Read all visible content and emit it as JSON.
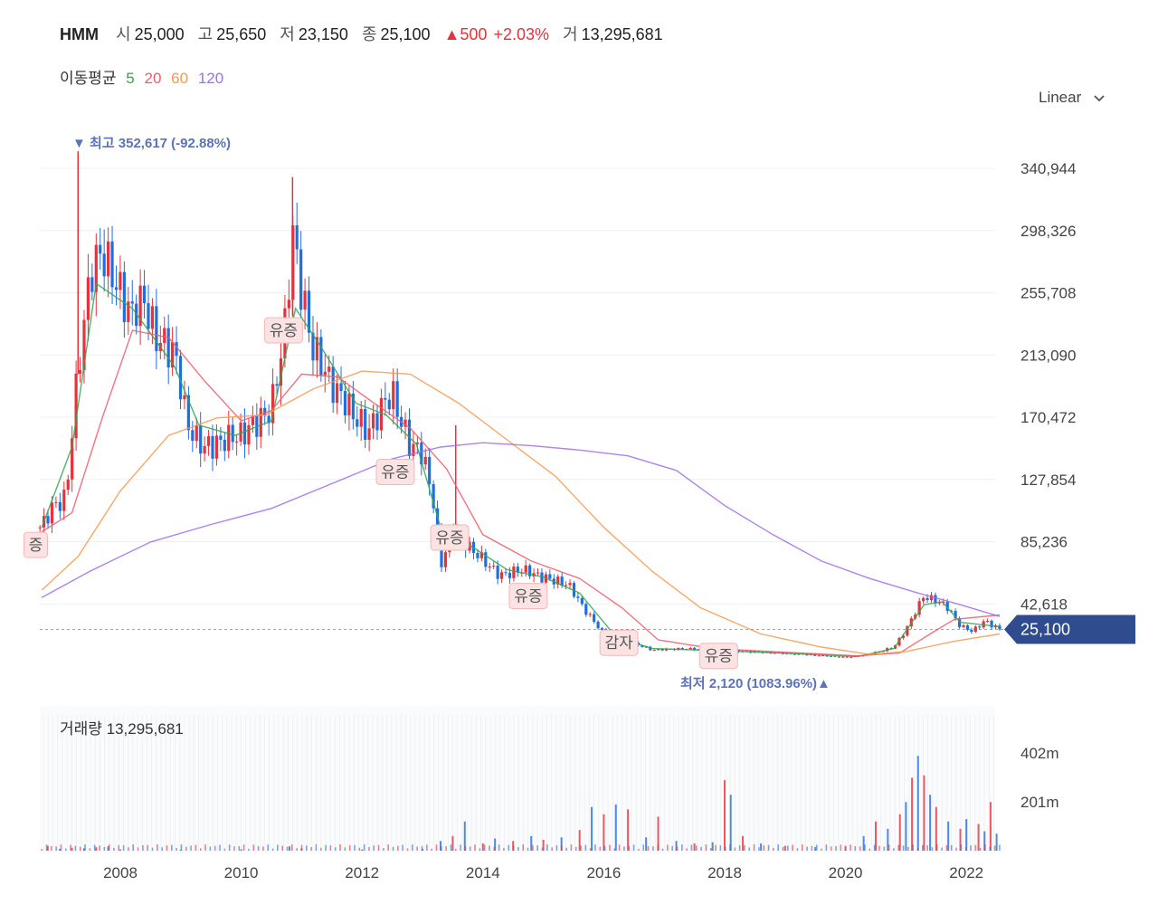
{
  "header": {
    "symbol": "HMM",
    "open_label": "시",
    "open": "25,000",
    "high_label": "고",
    "high": "25,650",
    "low_label": "저",
    "low": "23,150",
    "close_label": "종",
    "close": "25,100",
    "change": "▲500",
    "change_pct": "+2.03%",
    "volume_label": "거",
    "volume": "13,295,681"
  },
  "moving_avg": {
    "label": "이동평균",
    "periods": [
      {
        "label": "5",
        "color": "#2fa84f"
      },
      {
        "label": "20",
        "color": "#f05b6a"
      },
      {
        "label": "60",
        "color": "#f7994e"
      },
      {
        "label": "120",
        "color": "#a06cf0"
      }
    ]
  },
  "scale_selector": {
    "label": "Linear",
    "icon": "chevron-down-icon"
  },
  "annotations": {
    "max_label": "▼ 최고 352,617 (-92.88%)",
    "min_label": "최저 2,120 (1083.96%)▲"
  },
  "volume_panel": {
    "label": "거래량 13,295,681"
  },
  "colors": {
    "up": "#e8313b",
    "down": "#1f6fe0",
    "badge_bg": "#2f4d8e",
    "corporate_bg": "#fbe3e3"
  },
  "chart_data": [
    {
      "type": "candlestick",
      "price_ticks": [
        340944,
        298326,
        255708,
        213090,
        170472,
        127854,
        85236,
        42618
      ],
      "price_tick_labels": [
        "340,944",
        "298,326",
        "255,708",
        "213,090",
        "170,472",
        "127,854",
        "85,236",
        "42,618"
      ],
      "x_tick_labels": [
        "2008",
        "2010",
        "2012",
        "2014",
        "2016",
        "2018",
        "2020",
        "2022"
      ],
      "current_price": 25100,
      "current_price_label": "25,100",
      "max_price": 352617,
      "min_price": 2120,
      "corporate_actions": [
        {
          "year": 2006.6,
          "label": "증",
          "price": 83000
        },
        {
          "year": 2010.7,
          "label": "유증",
          "price": 230000
        },
        {
          "year": 2012.55,
          "label": "유증",
          "price": 133000
        },
        {
          "year": 2013.45,
          "label": "유증",
          "price": 88000
        },
        {
          "year": 2014.75,
          "label": "유증",
          "price": 48000
        },
        {
          "year": 2016.25,
          "label": "감자",
          "price": 16000
        },
        {
          "year": 2017.9,
          "label": "유증",
          "price": 7000
        }
      ],
      "price_path": [
        [
          2006.7,
          95000
        ],
        [
          2006.9,
          110000
        ],
        [
          2007.1,
          115000
        ],
        [
          2007.3,
          205000
        ],
        [
          2007.5,
          265000
        ],
        [
          2007.7,
          285000
        ],
        [
          2007.9,
          265000
        ],
        [
          2008.2,
          240000
        ],
        [
          2008.4,
          250000
        ],
        [
          2008.6,
          225000
        ],
        [
          2008.9,
          215000
        ],
        [
          2009.1,
          165000
        ],
        [
          2009.4,
          150000
        ],
        [
          2009.8,
          155000
        ],
        [
          2010.2,
          165000
        ],
        [
          2010.5,
          175000
        ],
        [
          2010.7,
          225000
        ],
        [
          2010.85,
          298000
        ],
        [
          2011.0,
          255000
        ],
        [
          2011.2,
          215000
        ],
        [
          2011.5,
          195000
        ],
        [
          2011.8,
          175000
        ],
        [
          2012.1,
          160000
        ],
        [
          2012.3,
          178000
        ],
        [
          2012.5,
          185000
        ],
        [
          2012.8,
          150000
        ],
        [
          2013.0,
          148000
        ],
        [
          2013.2,
          108000
        ],
        [
          2013.3,
          68000
        ],
        [
          2013.5,
          95000
        ],
        [
          2013.7,
          85000
        ],
        [
          2014.0,
          72000
        ],
        [
          2014.3,
          62000
        ],
        [
          2014.6,
          66000
        ],
        [
          2015.0,
          61000
        ],
        [
          2015.4,
          56000
        ],
        [
          2015.7,
          38000
        ],
        [
          2016.0,
          22000
        ],
        [
          2016.4,
          17000
        ],
        [
          2016.8,
          11000
        ],
        [
          2017.3,
          12000
        ],
        [
          2018.0,
          10500
        ],
        [
          2018.6,
          9500
        ],
        [
          2019.3,
          8000
        ],
        [
          2020.0,
          6000
        ],
        [
          2020.4,
          8000
        ],
        [
          2020.8,
          13000
        ],
        [
          2021.0,
          25000
        ],
        [
          2021.3,
          48000
        ],
        [
          2021.5,
          45000
        ],
        [
          2021.7,
          40000
        ],
        [
          2021.9,
          27000
        ],
        [
          2022.1,
          24000
        ],
        [
          2022.3,
          31000
        ],
        [
          2022.55,
          25100
        ]
      ],
      "moving_averages": [
        {
          "period": "5",
          "points": [
            [
              2006.7,
              95000
            ],
            [
              2007.2,
              150000
            ],
            [
              2007.6,
              262000
            ],
            [
              2008.2,
              245000
            ],
            [
              2008.9,
              205000
            ],
            [
              2009.3,
              165000
            ],
            [
              2009.9,
              158000
            ],
            [
              2010.5,
              168000
            ],
            [
              2010.9,
              245000
            ],
            [
              2011.3,
              220000
            ],
            [
              2011.9,
              180000
            ],
            [
              2012.4,
              172000
            ],
            [
              2012.9,
              152000
            ],
            [
              2013.3,
              95000
            ],
            [
              2013.7,
              85000
            ],
            [
              2014.4,
              66000
            ],
            [
              2015.0,
              61000
            ],
            [
              2015.6,
              50000
            ],
            [
              2016.2,
              20000
            ],
            [
              2016.8,
              12000
            ],
            [
              2018.0,
              10500
            ],
            [
              2019.5,
              8000
            ],
            [
              2020.2,
              6500
            ],
            [
              2020.8,
              12000
            ],
            [
              2021.3,
              42000
            ],
            [
              2021.6,
              44000
            ],
            [
              2021.9,
              30000
            ],
            [
              2022.55,
              27000
            ]
          ]
        },
        {
          "period": "20",
          "points": [
            [
              2006.7,
              92000
            ],
            [
              2007.2,
              105000
            ],
            [
              2007.7,
              170000
            ],
            [
              2008.2,
              230000
            ],
            [
              2008.8,
              225000
            ],
            [
              2009.4,
              195000
            ],
            [
              2010.0,
              168000
            ],
            [
              2010.5,
              175000
            ],
            [
              2011.0,
              200000
            ],
            [
              2011.6,
              198000
            ],
            [
              2012.2,
              180000
            ],
            [
              2012.8,
              163000
            ],
            [
              2013.4,
              135000
            ],
            [
              2014.0,
              90000
            ],
            [
              2014.8,
              72000
            ],
            [
              2015.6,
              60000
            ],
            [
              2016.3,
              40000
            ],
            [
              2016.9,
              18000
            ],
            [
              2017.8,
              12000
            ],
            [
              2019.0,
              9500
            ],
            [
              2020.2,
              7000
            ],
            [
              2020.9,
              9000
            ],
            [
              2021.4,
              22000
            ],
            [
              2021.8,
              32000
            ],
            [
              2022.55,
              35000
            ]
          ]
        },
        {
          "period": "60",
          "points": [
            [
              2006.7,
              52000
            ],
            [
              2007.3,
              75000
            ],
            [
              2008.0,
              120000
            ],
            [
              2008.8,
              158000
            ],
            [
              2009.6,
              170000
            ],
            [
              2010.4,
              172000
            ],
            [
              2011.2,
              190000
            ],
            [
              2012.0,
              202000
            ],
            [
              2012.8,
              200000
            ],
            [
              2013.6,
              180000
            ],
            [
              2014.4,
              155000
            ],
            [
              2015.2,
              130000
            ],
            [
              2016.0,
              95000
            ],
            [
              2016.8,
              65000
            ],
            [
              2017.6,
              40000
            ],
            [
              2018.6,
              22000
            ],
            [
              2019.6,
              13000
            ],
            [
              2020.4,
              8000
            ],
            [
              2021.0,
              10000
            ],
            [
              2021.8,
              17000
            ],
            [
              2022.55,
              22000
            ]
          ]
        },
        {
          "period": "120",
          "points": [
            [
              2006.7,
              47000
            ],
            [
              2007.5,
              65000
            ],
            [
              2008.5,
              85000
            ],
            [
              2009.5,
              97000
            ],
            [
              2010.5,
              108000
            ],
            [
              2011.5,
              125000
            ],
            [
              2012.5,
              142000
            ],
            [
              2013.3,
              150000
            ],
            [
              2014.0,
              153000
            ],
            [
              2014.8,
              151000
            ],
            [
              2015.6,
              148000
            ],
            [
              2016.4,
              144000
            ],
            [
              2017.2,
              134000
            ],
            [
              2018.0,
              110000
            ],
            [
              2018.8,
              90000
            ],
            [
              2019.6,
              72000
            ],
            [
              2020.4,
              60000
            ],
            [
              2021.2,
              50000
            ],
            [
              2021.9,
              42000
            ],
            [
              2022.55,
              34000
            ]
          ]
        }
      ]
    },
    {
      "type": "bar",
      "name": "거래량",
      "y_tick_labels": [
        "402m",
        "201m"
      ],
      "y_ticks_millions": [
        402,
        201
      ],
      "volume_millions": [
        [
          2006.8,
          20
        ],
        [
          2007.0,
          8
        ],
        [
          2007.2,
          12
        ],
        [
          2007.4,
          10
        ],
        [
          2007.6,
          14
        ],
        [
          2007.8,
          18
        ],
        [
          2008.0,
          5
        ],
        [
          2009.0,
          4
        ],
        [
          2010.0,
          6
        ],
        [
          2010.8,
          18
        ],
        [
          2011.0,
          10
        ],
        [
          2012.0,
          5
        ],
        [
          2013.0,
          8
        ],
        [
          2013.3,
          40
        ],
        [
          2013.5,
          60
        ],
        [
          2013.7,
          120
        ],
        [
          2014.0,
          30
        ],
        [
          2014.2,
          50
        ],
        [
          2014.5,
          40
        ],
        [
          2014.8,
          60
        ],
        [
          2015.0,
          45
        ],
        [
          2015.3,
          55
        ],
        [
          2015.6,
          85
        ],
        [
          2015.8,
          180
        ],
        [
          2016.0,
          150
        ],
        [
          2016.2,
          190
        ],
        [
          2016.4,
          170
        ],
        [
          2016.7,
          55
        ],
        [
          2016.9,
          140
        ],
        [
          2017.2,
          40
        ],
        [
          2017.5,
          30
        ],
        [
          2017.8,
          35
        ],
        [
          2018.0,
          290
        ],
        [
          2018.1,
          230
        ],
        [
          2018.3,
          60
        ],
        [
          2018.6,
          30
        ],
        [
          2019.0,
          20
        ],
        [
          2019.5,
          15
        ],
        [
          2020.0,
          20
        ],
        [
          2020.3,
          60
        ],
        [
          2020.5,
          120
        ],
        [
          2020.7,
          90
        ],
        [
          2020.9,
          150
        ],
        [
          2021.0,
          200
        ],
        [
          2021.1,
          300
        ],
        [
          2021.2,
          390
        ],
        [
          2021.3,
          310
        ],
        [
          2021.4,
          230
        ],
        [
          2021.5,
          180
        ],
        [
          2021.7,
          120
        ],
        [
          2021.9,
          90
        ],
        [
          2022.0,
          130
        ],
        [
          2022.2,
          110
        ],
        [
          2022.3,
          80
        ],
        [
          2022.4,
          200
        ],
        [
          2022.5,
          70
        ]
      ]
    }
  ]
}
